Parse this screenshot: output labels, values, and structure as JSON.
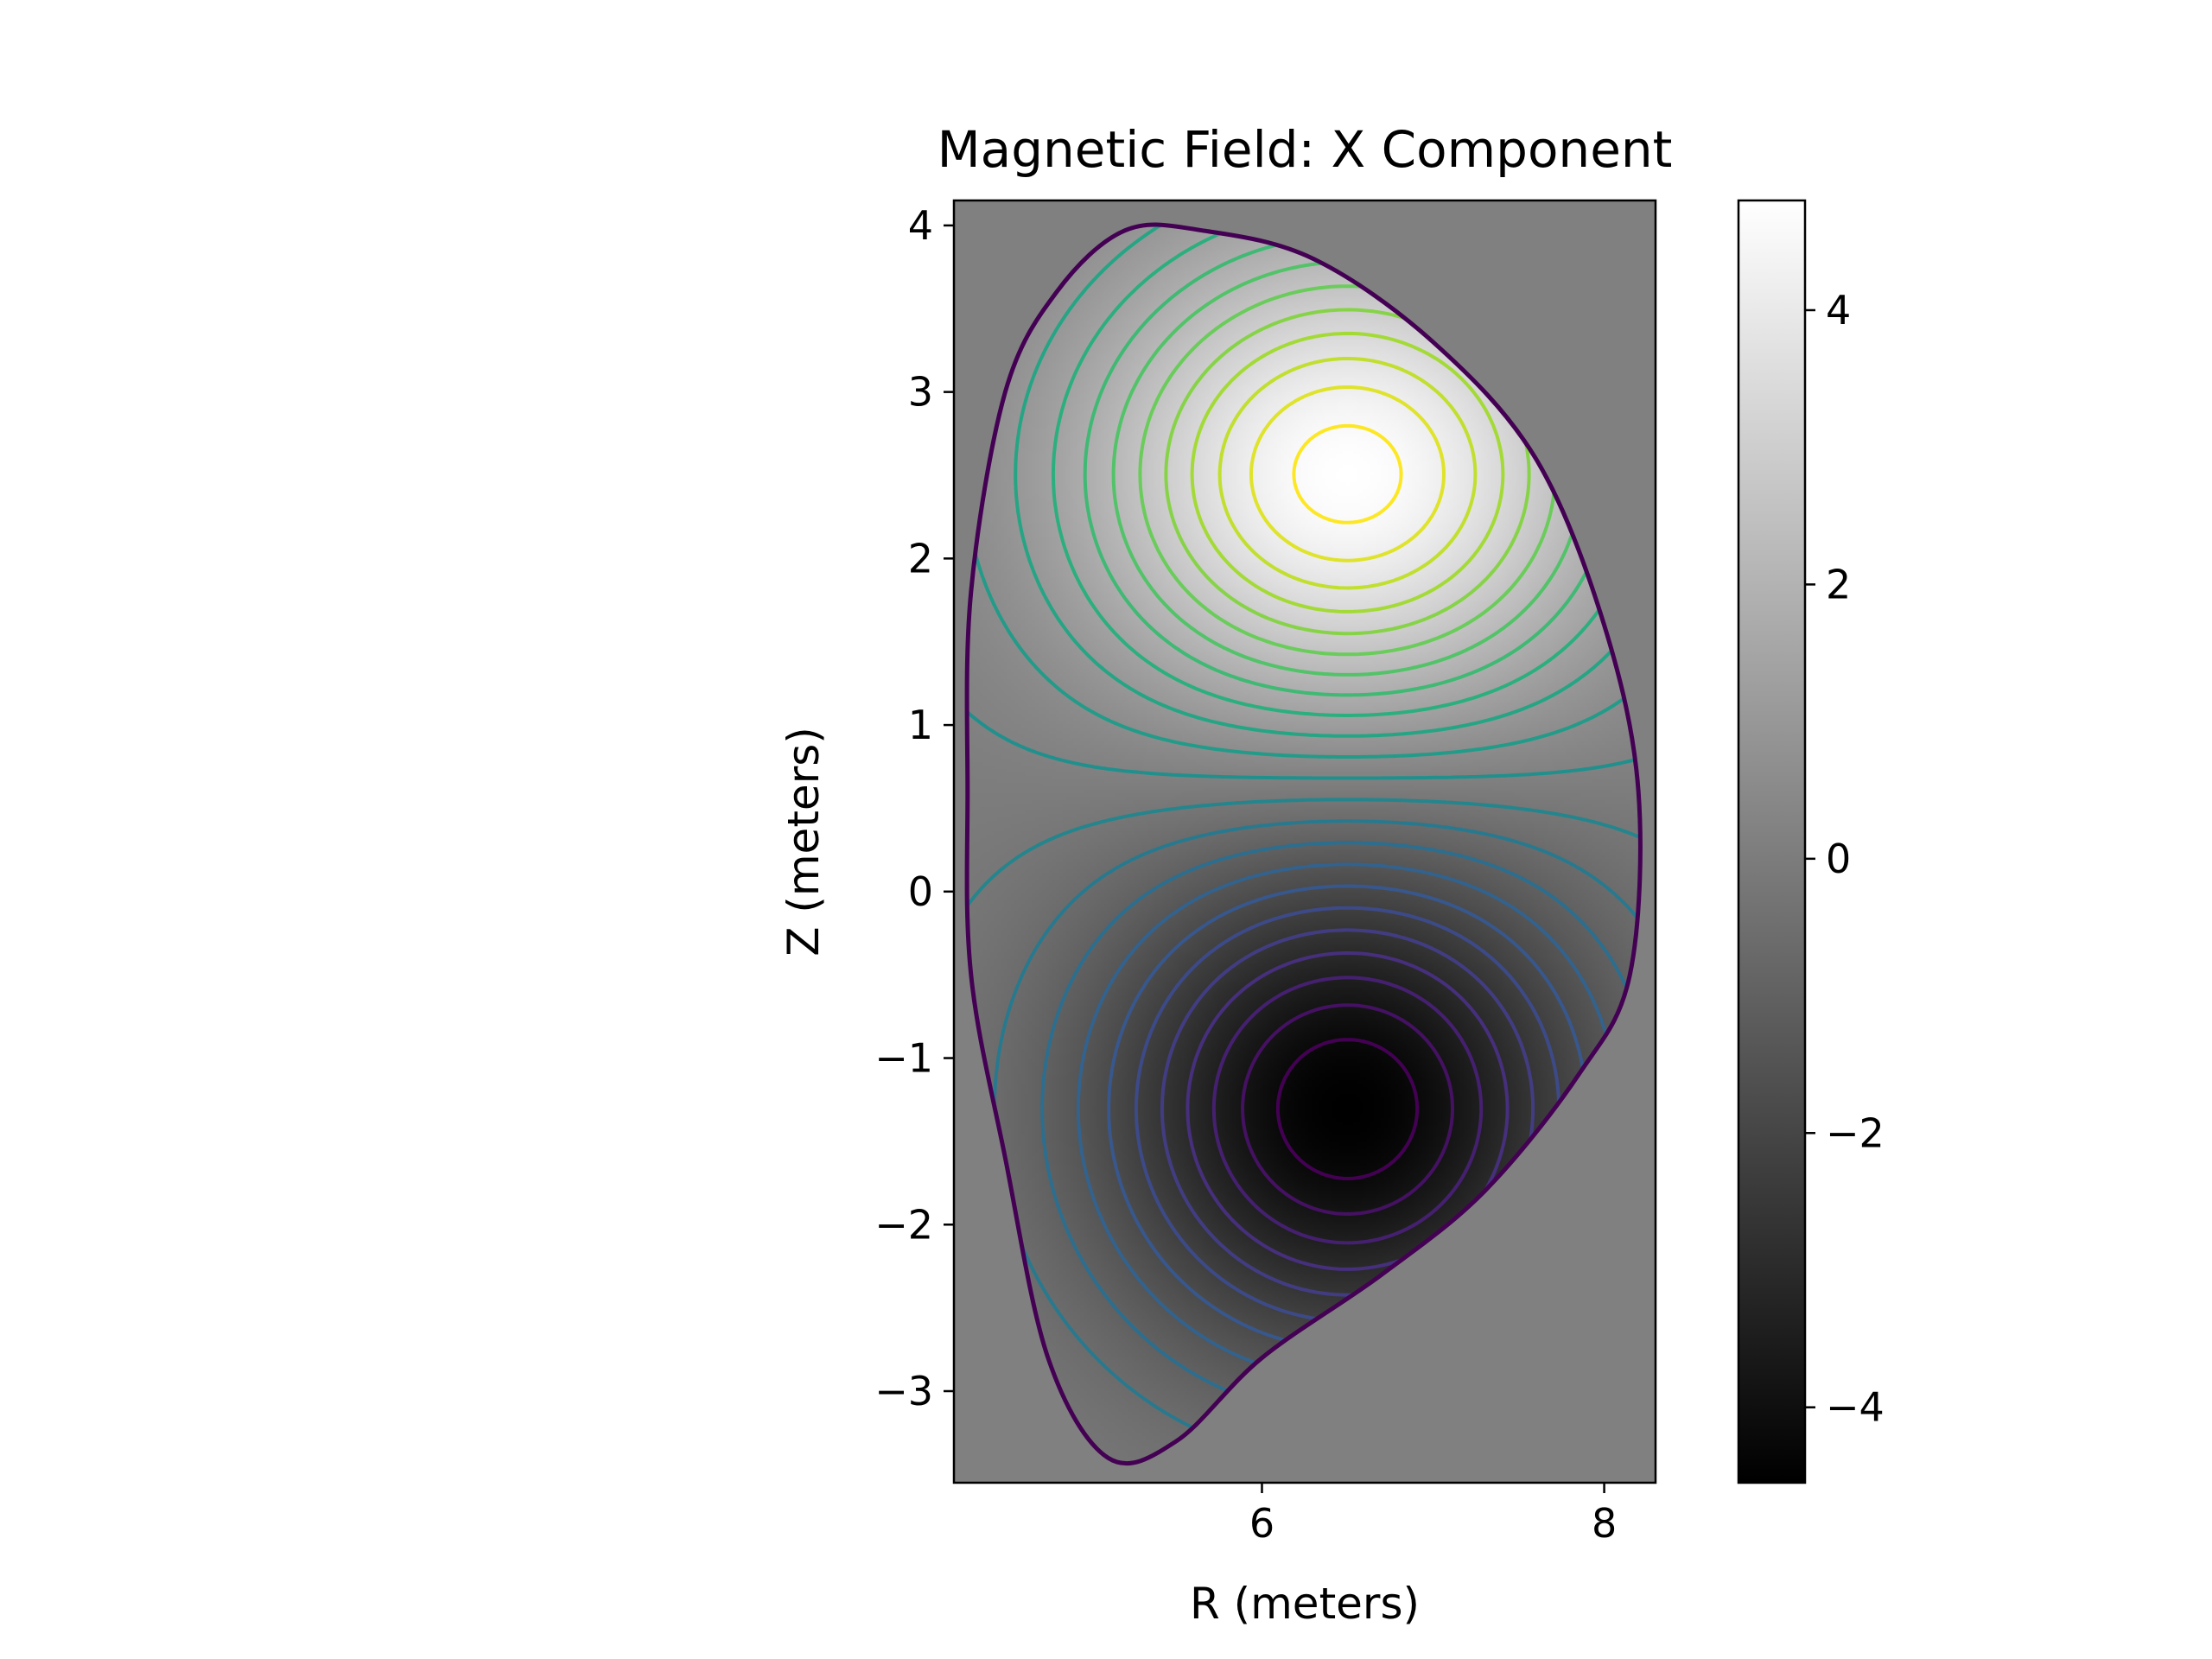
{
  "chart_data": {
    "type": "heatmap",
    "title": "Magnetic Field: X Component",
    "xlabel": "R (meters)",
    "ylabel": "Z (meters)",
    "xlim": [
      4.2,
      8.3
    ],
    "ylim": [
      -3.55,
      4.15
    ],
    "x_ticks": [
      6,
      8
    ],
    "x_tick_labels": [
      "6",
      "8"
    ],
    "y_ticks": [
      -3,
      -2,
      -1,
      0,
      1,
      2,
      3,
      4
    ],
    "y_tick_labels": [
      "−3",
      "−2",
      "−1",
      "0",
      "1",
      "2",
      "3",
      "4"
    ],
    "grid": false,
    "colormap": "gray",
    "background_value": 0,
    "colorbar": {
      "range": [
        -4.55,
        4.8
      ],
      "ticks": [
        -4,
        -2,
        0,
        2,
        4
      ],
      "tick_labels": [
        "−4",
        "−2",
        "0",
        "2",
        "4"
      ]
    },
    "contours": {
      "colormap": "viridis",
      "levels": [
        -4.2,
        -3.8,
        -3.4,
        -3.0,
        -2.6,
        -2.2,
        -1.8,
        -1.4,
        -1.0,
        -0.6,
        -0.2,
        0.2,
        0.6,
        1.0,
        1.4,
        1.8,
        2.2,
        2.6,
        3.0,
        3.4,
        3.8,
        4.2,
        4.6
      ]
    },
    "field_extrema": [
      {
        "kind": "max",
        "R": 6.5,
        "Z": 2.5,
        "value": 4.8
      },
      {
        "kind": "min",
        "R": 6.5,
        "Z": -1.3,
        "value": -4.55
      }
    ],
    "boundary": [
      [
        5.2,
        3.97
      ],
      [
        5.65,
        3.97
      ],
      [
        6.3,
        3.8
      ],
      [
        7.0,
        3.3
      ],
      [
        7.6,
        2.6
      ],
      [
        8.0,
        1.6
      ],
      [
        8.2,
        0.6
      ],
      [
        8.15,
        -0.5
      ],
      [
        7.85,
        -1.1
      ],
      [
        7.3,
        -1.8
      ],
      [
        6.7,
        -2.3
      ],
      [
        6.0,
        -2.8
      ],
      [
        5.5,
        -3.3
      ],
      [
        5.1,
        -3.4
      ],
      [
        4.75,
        -2.8
      ],
      [
        4.5,
        -1.6
      ],
      [
        4.3,
        -0.5
      ],
      [
        4.28,
        0.6
      ],
      [
        4.3,
        1.8
      ],
      [
        4.5,
        3.0
      ],
      [
        4.8,
        3.6
      ]
    ]
  },
  "colors": {
    "boundary": "#440154",
    "axes": "#000000",
    "background_field": "#808080"
  }
}
